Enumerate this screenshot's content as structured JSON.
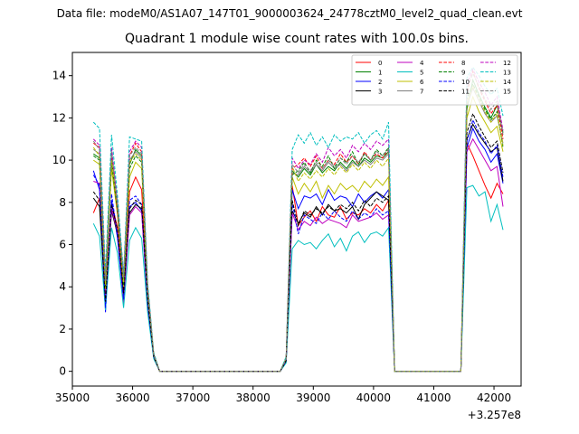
{
  "suptitle": "Data file: modeM0/AS1A07_147T01_9000003624_24778cztM0_level2_quad_clean.evt",
  "chart_data": {
    "type": "line",
    "title": "Quadrant 1 module wise count rates with 100.0s bins.",
    "xlabel": "",
    "ylabel": "",
    "x_offset_label": "+3.257e8",
    "xlim": [
      35000,
      42450
    ],
    "ylim": [
      -0.7,
      15.1
    ],
    "xticks": [
      35000,
      36000,
      37000,
      38000,
      39000,
      40000,
      41000,
      42000
    ],
    "xtick_labels": [
      "35000",
      "36000",
      "37000",
      "38000",
      "39000",
      "40000",
      "41000",
      "42000"
    ],
    "yticks": [
      0,
      2,
      4,
      6,
      8,
      10,
      12,
      14
    ],
    "ytick_labels": [
      "0",
      "2",
      "4",
      "6",
      "8",
      "10",
      "12",
      "14"
    ],
    "grid": false,
    "legend_placement": "top-right",
    "legend_columns": 4,
    "segment_times": [
      [
        35350,
        35450,
        35550,
        35650,
        35750,
        35850,
        35950,
        36050,
        36150,
        36250,
        36350,
        36450
      ],
      [
        38550,
        38650,
        38750,
        38850,
        38950,
        39050,
        39150,
        39250,
        39350,
        39450,
        39550,
        39650,
        39750,
        39850,
        39950,
        40050,
        40150,
        40250
      ],
      [
        41550,
        41650,
        41750,
        41850,
        41950,
        42050,
        42150
      ]
    ],
    "gap_times": [
      [
        36550,
        38450
      ],
      [
        40350,
        41450
      ]
    ],
    "series": [
      {
        "name": "0",
        "color": "#ff0000",
        "dash": false,
        "segments": [
          [
            7.5,
            8.2,
            3.5,
            8.0,
            6.8,
            3.8,
            8.5,
            9.2,
            8.6,
            3.5,
            0.8,
            0.0
          ],
          [
            0.5,
            8.8,
            6.9,
            7.3,
            7.6,
            7.1,
            7.8,
            7.4,
            7.3,
            7.8,
            7.2,
            7.5,
            7.4,
            7.7,
            7.5,
            7.9,
            7.6,
            8.1
          ],
          [
            10.8,
            10.2,
            9.5,
            8.8,
            8.2,
            8.9,
            8.4
          ]
        ]
      },
      {
        "name": "1",
        "color": "#008000",
        "dash": false,
        "segments": [
          [
            10.3,
            10.1,
            4.2,
            10.4,
            7.9,
            4.4,
            9.8,
            10.5,
            10.2,
            3.9,
            0.8,
            0.0
          ],
          [
            0.6,
            9.5,
            9.2,
            9.6,
            9.3,
            9.8,
            9.4,
            9.7,
            9.5,
            9.9,
            9.6,
            10.0,
            9.7,
            10.1,
            9.9,
            10.2,
            10.1,
            10.4
          ],
          [
            12.4,
            13.8,
            13.1,
            12.5,
            12.0,
            12.6,
            11.3
          ]
        ]
      },
      {
        "name": "2",
        "color": "#0000ff",
        "dash": false,
        "segments": [
          [
            9.5,
            8.6,
            2.8,
            8.1,
            6.3,
            3.3,
            7.8,
            8.0,
            7.6,
            3.1,
            0.7,
            0.0
          ],
          [
            0.6,
            8.6,
            7.7,
            8.3,
            8.2,
            8.4,
            7.9,
            8.6,
            8.1,
            8.3,
            8.2,
            7.8,
            8.4,
            8.0,
            8.3,
            8.5,
            8.2,
            8.6
          ],
          [
            10.6,
            11.5,
            10.9,
            10.5,
            9.9,
            10.3,
            8.9
          ]
        ]
      },
      {
        "name": "3",
        "color": "#000000",
        "dash": false,
        "segments": [
          [
            8.2,
            7.8,
            3.2,
            7.6,
            6.5,
            3.6,
            7.5,
            7.9,
            7.7,
            3.3,
            0.7,
            0.0
          ],
          [
            0.5,
            7.6,
            7.0,
            7.5,
            7.3,
            7.8,
            7.4,
            7.9,
            7.6,
            7.7,
            7.5,
            7.8,
            7.2,
            7.9,
            8.2,
            8.5,
            8.3,
            8.1
          ],
          [
            11.0,
            11.7,
            11.2,
            10.8,
            10.4,
            10.6,
            9.0
          ]
        ]
      },
      {
        "name": "4",
        "color": "#bf00bf",
        "dash": false,
        "segments": [
          [
            9.0,
            8.9,
            3.4,
            7.7,
            6.6,
            3.2,
            7.4,
            7.8,
            7.5,
            3.2,
            0.7,
            0.0
          ],
          [
            0.5,
            7.5,
            6.7,
            7.1,
            6.9,
            7.3,
            7.0,
            7.2,
            7.1,
            7.0,
            6.8,
            7.4,
            7.1,
            7.2,
            7.3,
            7.5,
            7.2,
            7.4
          ],
          [
            10.4,
            11.0,
            10.5,
            10.0,
            9.5,
            9.7,
            7.8
          ]
        ]
      },
      {
        "name": "5",
        "color": "#00bfbf",
        "dash": false,
        "segments": [
          [
            7.0,
            6.4,
            2.9,
            6.8,
            5.6,
            3.0,
            6.2,
            6.8,
            6.3,
            2.8,
            0.6,
            0.0
          ],
          [
            0.4,
            5.8,
            6.2,
            6.0,
            6.1,
            5.8,
            6.2,
            6.5,
            5.9,
            6.3,
            5.7,
            6.4,
            6.6,
            6.1,
            6.5,
            6.6,
            6.4,
            6.8
          ],
          [
            8.7,
            8.8,
            8.3,
            8.5,
            7.1,
            7.9,
            6.7
          ]
        ]
      },
      {
        "name": "6",
        "color": "#bfbf00",
        "dash": false,
        "segments": [
          [
            10.0,
            9.8,
            3.9,
            9.6,
            7.4,
            4.0,
            9.2,
            9.9,
            9.6,
            3.6,
            0.8,
            0.0
          ],
          [
            0.6,
            9.2,
            8.4,
            8.9,
            8.5,
            9.0,
            8.2,
            8.8,
            8.4,
            8.9,
            8.6,
            8.8,
            8.5,
            9.0,
            8.7,
            9.1,
            8.8,
            9.2
          ],
          [
            12.0,
            13.0,
            12.3,
            11.8,
            11.3,
            11.6,
            10.4
          ]
        ]
      },
      {
        "name": "7",
        "color": "#7f7f7f",
        "dash": false,
        "segments": [
          [
            10.5,
            10.3,
            4.1,
            10.2,
            7.7,
            4.3,
            10.0,
            10.4,
            10.1,
            3.8,
            0.8,
            0.0
          ],
          [
            0.6,
            9.4,
            9.3,
            9.7,
            9.4,
            9.8,
            9.5,
            9.9,
            9.6,
            9.8,
            9.5,
            9.9,
            9.7,
            10.0,
            9.8,
            10.1,
            10.0,
            10.3
          ],
          [
            12.6,
            13.4,
            12.8,
            12.2,
            11.8,
            12.1,
            10.8
          ]
        ]
      },
      {
        "name": "8",
        "color": "#ff0000",
        "dash": true,
        "segments": [
          [
            10.8,
            10.6,
            4.3,
            10.1,
            7.5,
            4.2,
            10.2,
            10.8,
            10.4,
            4.0,
            0.8,
            0.0
          ],
          [
            0.6,
            9.6,
            9.8,
            10.1,
            9.7,
            10.2,
            9.6,
            10.0,
            9.8,
            10.3,
            9.9,
            10.2,
            9.8,
            10.4,
            10.0,
            10.3,
            10.1,
            10.5
          ],
          [
            13.2,
            14.2,
            13.4,
            12.8,
            12.2,
            12.6,
            11.0
          ]
        ]
      },
      {
        "name": "9",
        "color": "#008000",
        "dash": true,
        "segments": [
          [
            10.2,
            10.0,
            4.0,
            9.9,
            7.6,
            4.1,
            9.6,
            10.2,
            9.9,
            3.7,
            0.8,
            0.0
          ],
          [
            0.6,
            9.3,
            9.5,
            9.9,
            9.4,
            10.0,
            9.7,
            10.2,
            9.6,
            10.1,
            9.9,
            10.4,
            9.8,
            10.3,
            10.0,
            10.5,
            10.2,
            10.6
          ],
          [
            12.9,
            13.6,
            13.0,
            12.4,
            11.9,
            12.3,
            10.6
          ]
        ]
      },
      {
        "name": "10",
        "color": "#0000ff",
        "dash": true,
        "segments": [
          [
            9.3,
            8.8,
            3.0,
            8.4,
            6.4,
            3.4,
            8.1,
            8.3,
            7.9,
            3.2,
            0.7,
            0.0
          ],
          [
            0.5,
            8.0,
            6.5,
            7.4,
            7.2,
            7.0,
            7.5,
            7.2,
            7.6,
            7.3,
            7.1,
            7.6,
            7.2,
            7.5,
            7.3,
            7.7,
            7.4,
            7.6
          ],
          [
            10.9,
            11.9,
            11.3,
            10.9,
            10.3,
            10.7,
            9.2
          ]
        ]
      },
      {
        "name": "11",
        "color": "#000000",
        "dash": true,
        "segments": [
          [
            8.5,
            8.1,
            3.3,
            7.9,
            6.7,
            3.7,
            7.7,
            8.1,
            7.9,
            3.4,
            0.7,
            0.0
          ],
          [
            0.5,
            8.1,
            6.9,
            7.6,
            7.4,
            7.7,
            7.5,
            7.8,
            7.6,
            7.9,
            7.7,
            8.0,
            7.6,
            8.1,
            7.8,
            8.2,
            8.0,
            8.3
          ],
          [
            11.3,
            12.2,
            11.6,
            11.1,
            10.6,
            10.9,
            9.4
          ]
        ]
      },
      {
        "name": "12",
        "color": "#bf00bf",
        "dash": true,
        "segments": [
          [
            11.0,
            10.7,
            4.4,
            10.6,
            8.0,
            4.5,
            10.4,
            10.9,
            10.6,
            4.1,
            0.8,
            0.0
          ],
          [
            0.6,
            10.1,
            9.6,
            10.0,
            9.8,
            10.3,
            9.9,
            10.6,
            10.2,
            10.5,
            10.1,
            10.7,
            10.4,
            10.8,
            10.5,
            10.9,
            10.7,
            11.0
          ],
          [
            13.6,
            14.3,
            13.7,
            13.2,
            12.6,
            13.0,
            11.4
          ]
        ]
      },
      {
        "name": "13",
        "color": "#00bfbf",
        "dash": true,
        "segments": [
          [
            11.8,
            11.5,
            4.7,
            11.2,
            8.3,
            4.6,
            11.1,
            11.0,
            10.9,
            4.2,
            0.9,
            0.0
          ],
          [
            0.7,
            10.5,
            11.2,
            10.8,
            11.3,
            10.7,
            11.1,
            10.6,
            11.2,
            10.9,
            11.1,
            11.0,
            11.3,
            10.8,
            11.2,
            11.4,
            11.0,
            11.8
          ],
          [
            13.9,
            14.4,
            14.0,
            13.5,
            13.1,
            13.4,
            12.1
          ]
        ]
      },
      {
        "name": "14",
        "color": "#bfbf00",
        "dash": true,
        "segments": [
          [
            10.6,
            10.2,
            4.1,
            10.0,
            7.8,
            4.2,
            9.9,
            10.3,
            10.0,
            3.8,
            0.8,
            0.0
          ],
          [
            0.6,
            9.7,
            9.0,
            9.4,
            9.1,
            9.5,
            9.2,
            9.6,
            9.3,
            9.7,
            9.4,
            9.8,
            9.5,
            9.9,
            9.6,
            10.0,
            9.7,
            10.1
          ],
          [
            12.7,
            13.5,
            12.9,
            12.3,
            11.8,
            12.2,
            10.7
          ]
        ]
      },
      {
        "name": "15",
        "color": "#7f7f7f",
        "dash": true,
        "segments": [
          [
            10.9,
            10.5,
            4.3,
            10.4,
            7.9,
            4.4,
            10.2,
            10.6,
            10.3,
            3.9,
            0.8,
            0.0
          ],
          [
            0.6,
            9.8,
            9.4,
            9.8,
            9.5,
            9.9,
            9.6,
            10.0,
            9.7,
            10.1,
            9.8,
            10.2,
            9.9,
            10.3,
            10.0,
            10.4,
            10.2,
            10.5
          ],
          [
            13.4,
            14.1,
            13.5,
            12.9,
            12.4,
            12.8,
            11.2
          ]
        ]
      }
    ]
  }
}
